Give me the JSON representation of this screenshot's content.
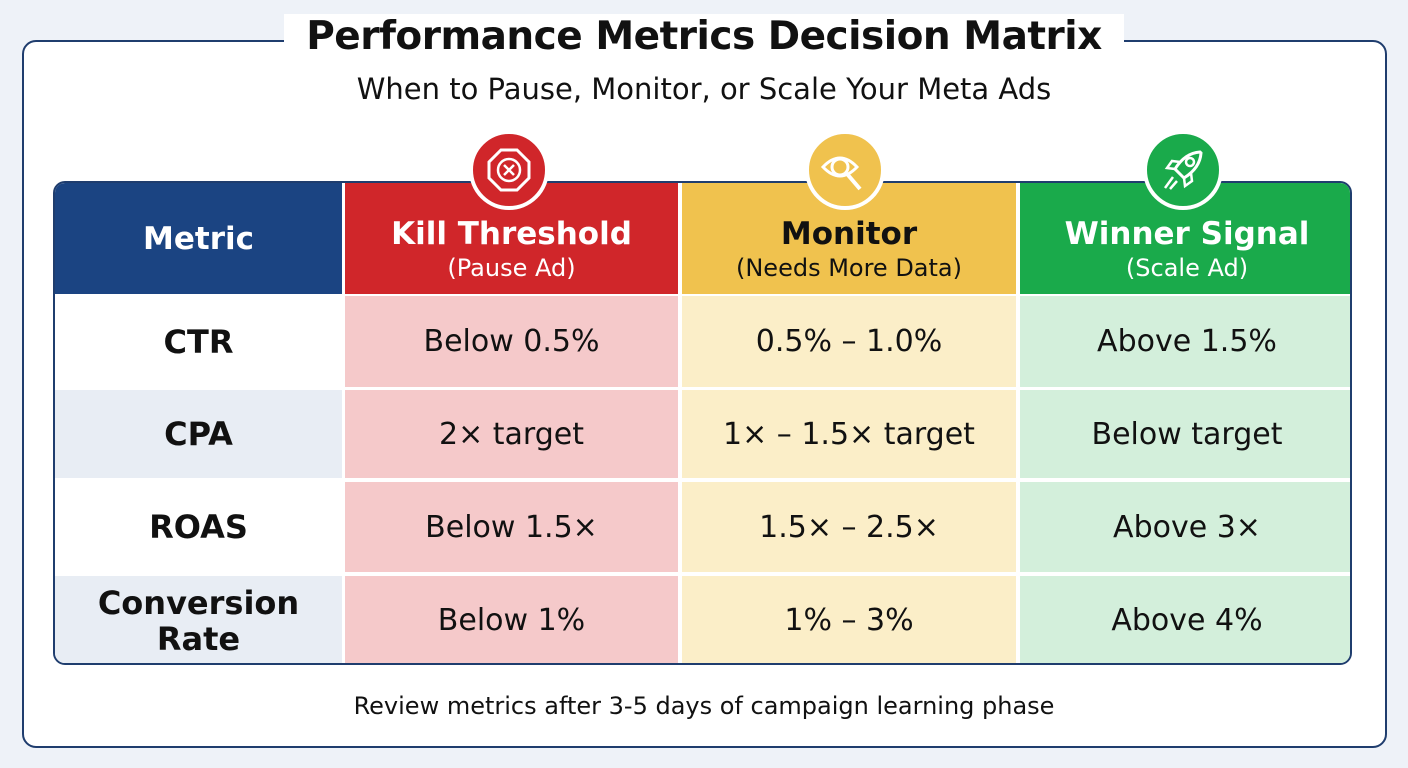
{
  "title": "Performance Metrics Decision Matrix",
  "subtitle": "When to Pause, Monitor, or Scale Your Meta Ads",
  "columns": [
    {
      "label": "Metric",
      "color": "#1b4482"
    },
    {
      "label": "Kill Threshold",
      "sublabel": "(Pause Ad)",
      "color": "#d0262a",
      "tint": "#f5c9ca",
      "icon": "stop-x-icon"
    },
    {
      "label": "Monitor",
      "sublabel": "(Needs More Data)",
      "color": "#f0c24e",
      "tint": "#fbeec8",
      "icon": "eye-magnifier-icon"
    },
    {
      "label": "Winner Signal",
      "sublabel": "(Scale Ad)",
      "color": "#1aaa4b",
      "tint": "#d3efdb",
      "icon": "rocket-icon"
    }
  ],
  "rows": [
    {
      "metric": "CTR",
      "kill": "Below 0.5%",
      "monitor": "0.5% – 1.0%",
      "winner": "Above 1.5%"
    },
    {
      "metric": "CPA",
      "kill": "2× target",
      "monitor": "1× – 1.5× target",
      "winner": "Below target"
    },
    {
      "metric": "ROAS",
      "kill": "Below 1.5×",
      "monitor": "1.5× – 2.5×",
      "winner": "Above 3×"
    },
    {
      "metric": "Conversion Rate",
      "kill": "Below 1%",
      "monitor": "1% – 3%",
      "winner": "Above 4%"
    }
  ],
  "footer": "Review metrics after 3-5 days of campaign learning phase"
}
